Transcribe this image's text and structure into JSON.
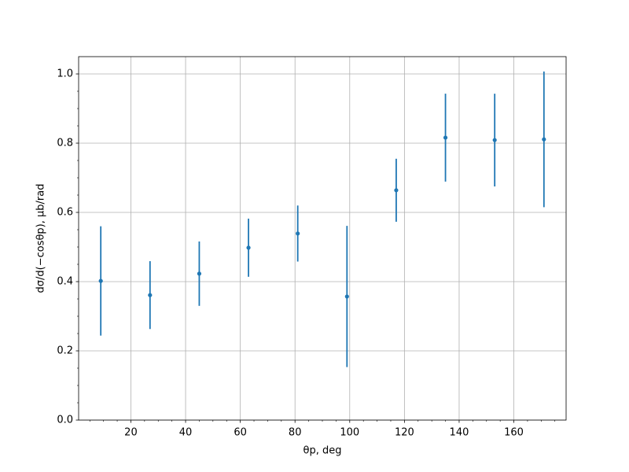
{
  "chart_data": {
    "type": "errorbar",
    "xlabel": "θp, deg",
    "ylabel": "dσ/d(−cosθp), μb/rad",
    "x": [
      9,
      27,
      45,
      63,
      81,
      99,
      117,
      135,
      153,
      171
    ],
    "series": [
      {
        "color": "#1f77b4",
        "values": [
          0.402,
          0.361,
          0.423,
          0.498,
          0.539,
          0.357,
          0.664,
          0.816,
          0.809,
          0.811
        ],
        "errors": [
          0.158,
          0.098,
          0.093,
          0.084,
          0.081,
          0.204,
          0.091,
          0.127,
          0.134,
          0.196
        ]
      }
    ],
    "xlim": [
      0.9,
      179.1
    ],
    "ylim": [
      0,
      1.05
    ],
    "xticks": [
      20,
      40,
      60,
      80,
      100,
      120,
      140,
      160
    ],
    "yticks": [
      {
        "value": 0,
        "label": "0.0"
      },
      {
        "value": 0.2,
        "label": "0.2"
      },
      {
        "value": 0.4,
        "label": "0.4"
      },
      {
        "value": 0.6,
        "label": "0.6"
      },
      {
        "value": 0.8,
        "label": "0.8"
      },
      {
        "value": 1.0,
        "label": "1.0"
      }
    ],
    "xminorticks": [
      5,
      10,
      15,
      25,
      30,
      35,
      45,
      50,
      55,
      65,
      70,
      75,
      85,
      90,
      95,
      105,
      110,
      115,
      125,
      130,
      135,
      145,
      150,
      155,
      165,
      170,
      175
    ],
    "yminorticks": [
      0.05,
      0.1,
      0.15,
      0.25,
      0.3,
      0.35,
      0.45,
      0.5,
      0.55,
      0.65,
      0.7,
      0.75,
      0.85,
      0.9,
      0.95
    ],
    "grid": true
  }
}
